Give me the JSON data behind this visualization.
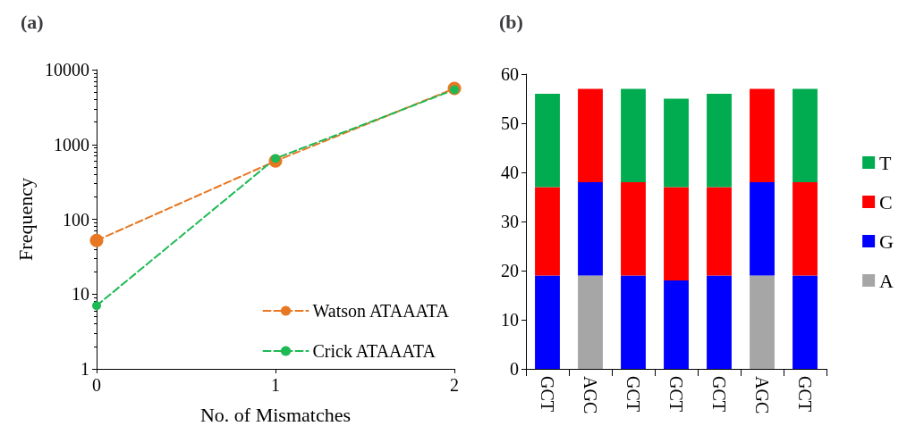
{
  "chart_data": [
    {
      "type": "line",
      "title": "(a)",
      "xlabel": "No. of Mismatches",
      "ylabel": "Frequency",
      "x": [
        0,
        1,
        2
      ],
      "xlim": [
        0,
        2
      ],
      "xticks": [
        0,
        1,
        2
      ],
      "ylim": [
        1,
        10000
      ],
      "yticks": [
        1,
        10,
        100,
        1000,
        10000
      ],
      "log": "y",
      "grid": false,
      "legend": "bottom right",
      "marker": "circle",
      "line_style": "dashed",
      "series": [
        {
          "name": "Watson ATAAATA",
          "color": "#e87722",
          "values": [
            52,
            600,
            5600
          ]
        },
        {
          "name": "Crick ATAAATA",
          "color": "#1db954",
          "values": [
            7,
            650,
            5400
          ]
        }
      ]
    },
    {
      "type": "bar",
      "title": "(b)",
      "categories": [
        "GCT",
        "AGC",
        "GCT",
        "GCT",
        "GCT",
        "AGC",
        "GCT"
      ],
      "stacked": true,
      "ylim": [
        0,
        60
      ],
      "yticks": [
        0,
        10,
        20,
        30,
        40,
        50,
        60
      ],
      "grid": false,
      "legend": "right",
      "series": [
        {
          "name": "A",
          "color": "#a6a6a6",
          "values": [
            null,
            19,
            null,
            null,
            null,
            19,
            null
          ]
        },
        {
          "name": "G",
          "color": "#0000ff",
          "values": [
            19,
            19,
            19,
            18,
            19,
            19,
            19
          ]
        },
        {
          "name": "C",
          "color": "#ff0000",
          "values": [
            18,
            19,
            19,
            19,
            18,
            19,
            19
          ]
        },
        {
          "name": "T",
          "color": "#00ac4f",
          "values": [
            19,
            null,
            19,
            18,
            19,
            null,
            19
          ]
        }
      ]
    }
  ]
}
